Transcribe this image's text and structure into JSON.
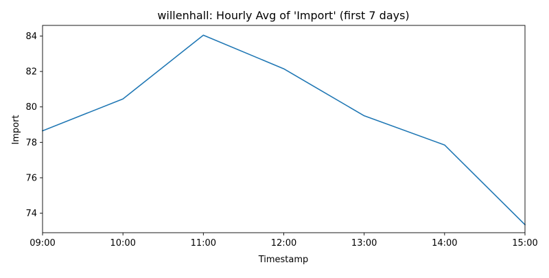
{
  "chart_data": {
    "type": "line",
    "title": "willenhall: Hourly Avg of 'Import' (first 7 days)",
    "xlabel": "Timestamp",
    "ylabel": "Import",
    "categories": [
      "09:00",
      "10:00",
      "11:00",
      "12:00",
      "13:00",
      "14:00",
      "15:00"
    ],
    "series": [
      {
        "values": [
          78.65,
          80.45,
          84.05,
          82.15,
          79.5,
          77.85,
          73.35
        ]
      }
    ],
    "ylim": [
      72.9,
      84.6
    ],
    "yticks": [
      74,
      76,
      78,
      80,
      82,
      84
    ],
    "grid": false,
    "line_color": "#1f77b4"
  }
}
